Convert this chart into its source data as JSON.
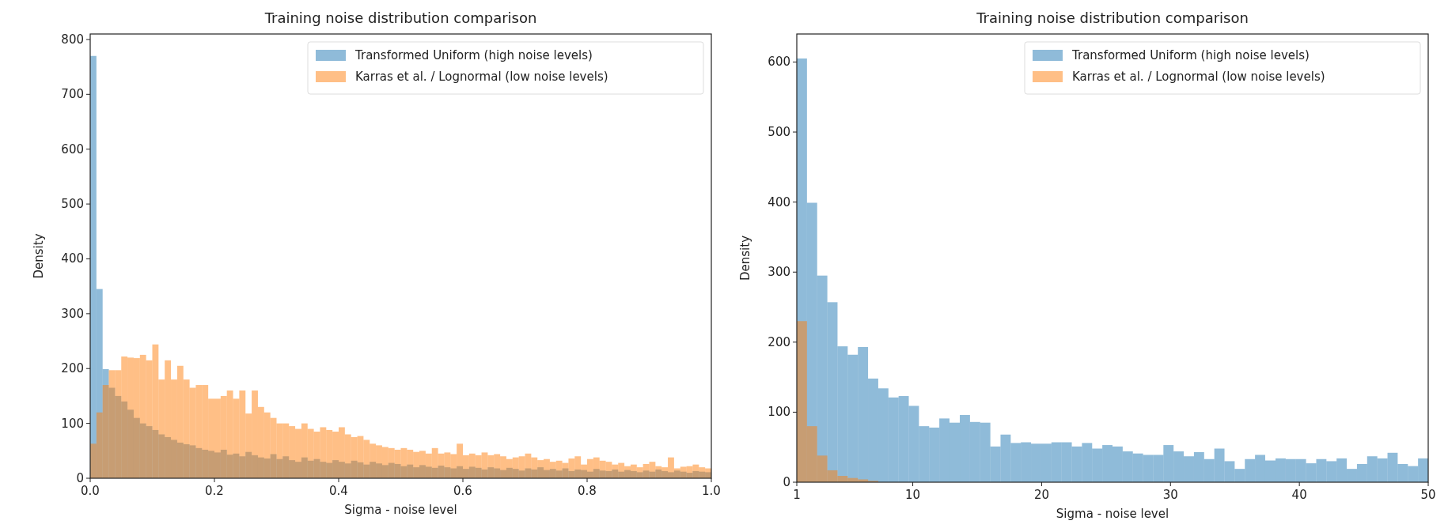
{
  "chart_data": [
    {
      "type": "histogram",
      "title": "Training noise distribution comparison",
      "xlabel": "Sigma - noise level",
      "ylabel": "Density",
      "xlim": [
        0,
        1
      ],
      "ylim": [
        0,
        810
      ],
      "xticks": [
        {
          "value": 0,
          "label": "0.0"
        },
        0.2,
        0.4,
        0.6,
        0.8,
        {
          "value": 1,
          "label": "1.0"
        }
      ],
      "yticks": [
        0,
        100,
        200,
        300,
        400,
        500,
        600,
        700,
        800
      ],
      "grid": false,
      "legend": "top right",
      "bins": [
        0,
        0.01,
        0.02,
        0.03,
        0.04,
        0.05,
        0.06,
        0.07,
        0.08,
        0.09,
        0.1,
        0.11,
        0.12,
        0.13,
        0.14,
        0.15,
        0.16,
        0.17,
        0.18,
        0.19,
        0.2,
        0.21,
        0.22,
        0.23,
        0.24,
        0.25,
        0.26,
        0.27,
        0.28,
        0.29,
        0.3,
        0.31,
        0.32,
        0.33,
        0.34,
        0.35,
        0.36,
        0.37,
        0.38,
        0.39,
        0.4,
        0.41,
        0.42,
        0.43,
        0.44,
        0.45,
        0.46,
        0.47,
        0.48,
        0.49,
        0.5,
        0.51,
        0.52,
        0.53,
        0.54,
        0.55,
        0.56,
        0.57,
        0.58,
        0.59,
        0.6,
        0.61,
        0.62,
        0.63,
        0.64,
        0.65,
        0.66,
        0.67,
        0.68,
        0.69,
        0.7,
        0.71,
        0.72,
        0.73,
        0.74,
        0.75,
        0.76,
        0.77,
        0.78,
        0.79,
        0.8,
        0.81,
        0.82,
        0.83,
        0.84,
        0.85,
        0.86,
        0.87,
        0.88,
        0.89,
        0.9,
        0.91,
        0.92,
        0.93,
        0.94,
        0.95,
        0.96,
        0.97,
        0.98,
        0.99,
        1
      ],
      "series": [
        {
          "name": "Transformed Uniform (high noise levels)",
          "color": "#1f77b4",
          "values": [
            770,
            345,
            199,
            165,
            150,
            140,
            125,
            110,
            100,
            95,
            88,
            80,
            75,
            70,
            65,
            62,
            60,
            55,
            52,
            50,
            47,
            52,
            43,
            45,
            40,
            48,
            42,
            38,
            36,
            44,
            35,
            40,
            33,
            30,
            38,
            32,
            35,
            30,
            28,
            33,
            30,
            27,
            32,
            29,
            25,
            30,
            27,
            24,
            28,
            26,
            22,
            25,
            20,
            24,
            21,
            19,
            23,
            20,
            18,
            22,
            17,
            21,
            19,
            16,
            20,
            18,
            15,
            19,
            17,
            14,
            18,
            16,
            20,
            15,
            17,
            14,
            18,
            13,
            16,
            15,
            12,
            17,
            14,
            13,
            16,
            12,
            15,
            13,
            11,
            14,
            12,
            16,
            13,
            11,
            14,
            12,
            10,
            13,
            12,
            11
          ]
        },
        {
          "name": "Karras et al. / Lognormal (low noise levels)",
          "color": "#ff7f0e",
          "values": [
            63,
            120,
            170,
            197,
            197,
            222,
            220,
            219,
            225,
            215,
            244,
            180,
            215,
            180,
            205,
            180,
            165,
            170,
            170,
            145,
            145,
            150,
            160,
            145,
            160,
            118,
            160,
            130,
            120,
            110,
            100,
            100,
            95,
            90,
            100,
            90,
            85,
            93,
            88,
            85,
            93,
            80,
            75,
            77,
            70,
            63,
            60,
            57,
            55,
            52,
            55,
            52,
            48,
            50,
            45,
            55,
            45,
            47,
            44,
            63,
            42,
            45,
            42,
            47,
            42,
            44,
            40,
            35,
            38,
            40,
            45,
            38,
            33,
            35,
            30,
            32,
            28,
            36,
            40,
            25,
            35,
            38,
            32,
            30,
            25,
            28,
            22,
            25,
            20,
            26,
            30,
            22,
            20,
            38,
            18,
            21,
            22,
            25,
            20,
            18
          ]
        }
      ]
    },
    {
      "type": "histogram",
      "title": "Training noise distribution comparison",
      "xlabel": "Sigma - noise level",
      "ylabel": "Density",
      "xlim": [
        1,
        50
      ],
      "ylim": [
        0,
        640
      ],
      "xticks": [
        1,
        10,
        20,
        30,
        40,
        50
      ],
      "yticks": [
        0,
        100,
        200,
        300,
        400,
        500,
        600
      ],
      "grid": false,
      "legend": "top right",
      "bins": [
        1,
        1.79,
        2.58,
        3.37,
        4.16,
        4.95,
        5.74,
        6.53,
        7.32,
        8.11,
        8.9,
        9.69,
        10.48,
        11.27,
        12.06,
        12.85,
        13.65,
        14.44,
        15.23,
        16.02,
        16.81,
        17.6,
        18.39,
        19.18,
        19.97,
        20.76,
        21.55,
        22.34,
        23.13,
        23.92,
        24.71,
        25.5,
        26.29,
        27.08,
        27.87,
        28.66,
        29.45,
        30.24,
        31.03,
        31.82,
        32.61,
        33.4,
        34.19,
        34.98,
        35.77,
        36.56,
        37.35,
        38.15,
        38.94,
        39.73,
        40.52,
        41.31,
        42.1,
        42.89,
        43.68,
        44.47,
        45.26,
        46.05,
        46.84,
        47.63,
        48.42,
        49.21,
        50
      ],
      "series": [
        {
          "name": "Transformed Uniform (high noise levels)",
          "color": "#1f77b4",
          "values": [
            605,
            399,
            295,
            257,
            194,
            182,
            193,
            148,
            134,
            121,
            123,
            109,
            80,
            78,
            91,
            85,
            96,
            86,
            85,
            51,
            68,
            56,
            57,
            55,
            55,
            57,
            57,
            51,
            56,
            48,
            53,
            51,
            44,
            41,
            39,
            39,
            53,
            44,
            37,
            43,
            33,
            48,
            30,
            19,
            33,
            39,
            31,
            34,
            33,
            33,
            27,
            33,
            30,
            34,
            19,
            26,
            37,
            34,
            42,
            26,
            23,
            34
          ]
        },
        {
          "name": "Karras et al. / Lognormal (low noise levels)",
          "color": "#ff7f0e",
          "values": [
            230,
            80,
            38,
            17,
            9,
            6,
            4,
            2,
            null,
            null,
            null,
            null,
            null,
            null,
            null,
            null,
            null,
            null,
            null,
            null,
            null,
            null,
            null,
            null,
            null,
            null,
            null,
            null,
            null,
            null,
            null,
            null,
            null,
            null,
            null,
            null,
            null,
            null,
            null,
            null,
            null,
            null,
            null,
            null,
            null,
            null,
            null,
            null,
            null,
            null,
            null,
            null,
            null,
            null,
            null,
            null,
            null,
            null,
            null,
            null,
            null,
            null
          ]
        }
      ]
    }
  ]
}
